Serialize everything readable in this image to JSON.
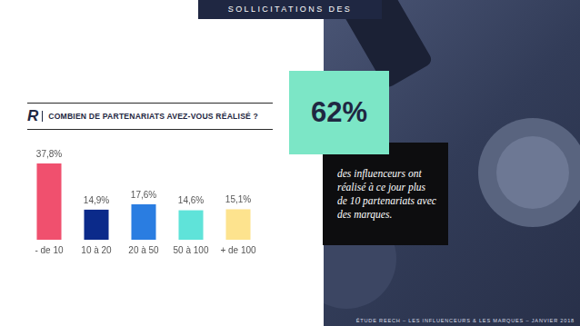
{
  "header": "SOLLICITATIONS DES MARQUES",
  "logo": "R",
  "chart_data": {
    "type": "bar",
    "title": "COMBIEN DE PARTENARIATS AVEZ-VOUS RÉALISÉ ?",
    "categories": [
      "- de 10",
      "10 à 20",
      "20 à 50",
      "50 à 100",
      "+ de 100"
    ],
    "values": [
      37.8,
      14.9,
      17.6,
      14.6,
      15.1
    ],
    "value_labels": [
      "37,8%",
      "14,9%",
      "17,6%",
      "14,6%",
      "15,1%"
    ],
    "colors": [
      "#f0506e",
      "#0b2a8a",
      "#2a7de1",
      "#5fe3d9",
      "#fde38e"
    ],
    "ylim": [
      0,
      37.8
    ],
    "grid": false,
    "data_labels": true,
    "tick_labels": "x"
  },
  "callout": {
    "value": "62%",
    "text": "des influenceurs ont réalisé à ce jour plus de 10 partenariats avec des marques."
  },
  "footer": "ÉTUDE REECH – LES INFLUENCEURS & LES MARQUES – JANVIER 2018"
}
